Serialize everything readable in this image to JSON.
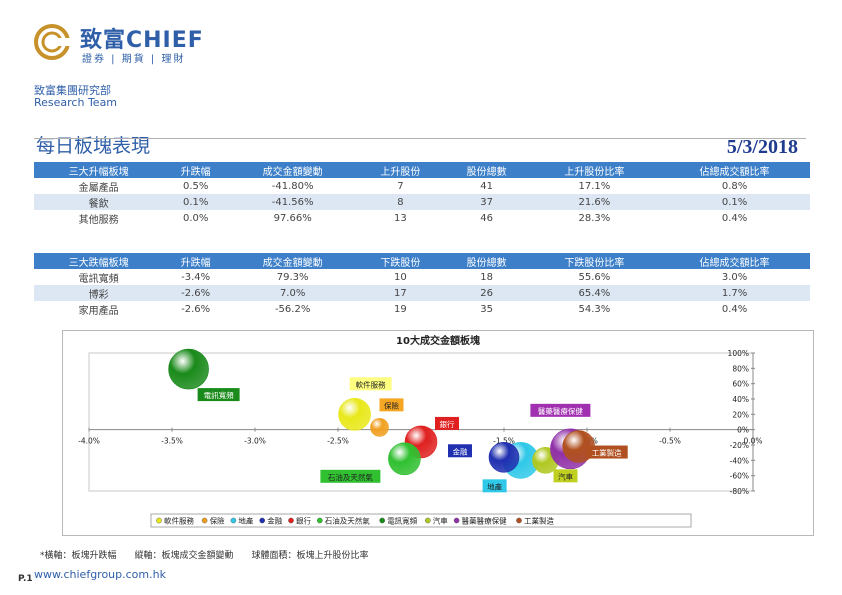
{
  "header": {
    "brand": "致富CHIEF",
    "brand_sub": "證券 | 期貨 | 理財",
    "dept": "致富集團研究部",
    "team": "Research Team"
  },
  "page_title": "每日板塊表現",
  "date": "5/3/2018",
  "gainers": {
    "columns": [
      "三大升幅板塊",
      "升跌幅",
      "成交金額變動",
      "上升股份",
      "股份總數",
      "上升股份比率",
      "佔總成交額比率"
    ],
    "rows": [
      [
        "金屬產品",
        "0.5%",
        "-41.80%",
        "7",
        "41",
        "17.1%",
        "0.8%"
      ],
      [
        "餐飲",
        "0.1%",
        "-41.56%",
        "8",
        "37",
        "21.6%",
        "0.1%"
      ],
      [
        "其他服務",
        "0.0%",
        "97.66%",
        "13",
        "46",
        "28.3%",
        "0.4%"
      ]
    ]
  },
  "losers": {
    "columns": [
      "三大跌幅板塊",
      "升跌幅",
      "成交金額變動",
      "下跌股份",
      "股份總數",
      "下跌股份比率",
      "佔總成交額比率"
    ],
    "rows": [
      [
        "電訊寬頻",
        "-3.4%",
        "79.3%",
        "10",
        "18",
        "55.6%",
        "3.0%"
      ],
      [
        "博彩",
        "-2.6%",
        "7.0%",
        "17",
        "26",
        "65.4%",
        "1.7%"
      ],
      [
        "家用產品",
        "-2.6%",
        "-56.2%",
        "19",
        "35",
        "54.3%",
        "0.4%"
      ]
    ]
  },
  "chart_data": {
    "type": "scatter",
    "title": "10大成交金額板塊",
    "xlim": [
      -4.0,
      0.0
    ],
    "ylim": [
      -80,
      100
    ],
    "x_ticks": [
      "-4.0%",
      "-3.5%",
      "-3.0%",
      "-2.5%",
      "-2.0%",
      "-1.5%",
      "-1.0%",
      "-0.5%",
      "0.0%"
    ],
    "y_ticks": [
      "100%",
      "80%",
      "60%",
      "40%",
      "20%",
      "0%",
      "-20%",
      "-40%",
      "-60%",
      "-80%"
    ],
    "series": [
      {
        "name": "軟件服務",
        "x": -2.4,
        "y": 20,
        "size": 16,
        "color": "#e8e81a"
      },
      {
        "name": "保險",
        "x": -2.25,
        "y": 3,
        "size": 9,
        "color": "#f0a020"
      },
      {
        "name": "地產",
        "x": -1.4,
        "y": -40,
        "size": 18,
        "color": "#2ec8e8"
      },
      {
        "name": "金融",
        "x": -1.5,
        "y": -36,
        "size": 15,
        "color": "#2030b0"
      },
      {
        "name": "銀行",
        "x": -2.0,
        "y": -16,
        "size": 16,
        "color": "#e02020"
      },
      {
        "name": "石油及天然氣",
        "x": -2.1,
        "y": -38,
        "size": 16,
        "color": "#30c030"
      },
      {
        "name": "電訊寬頻",
        "x": -3.4,
        "y": 79,
        "size": 20,
        "color": "#1a8a1a"
      },
      {
        "name": "汽車",
        "x": -1.25,
        "y": -40,
        "size": 13,
        "color": "#b0c820"
      },
      {
        "name": "醫藥醫療保健",
        "x": -1.1,
        "y": -25,
        "size": 20,
        "color": "#9030a8"
      },
      {
        "name": "工業製造",
        "x": -1.05,
        "y": -22,
        "size": 16,
        "color": "#b05020"
      }
    ],
    "labels": [
      {
        "name": "軟件服務",
        "bg": "#ffff80"
      },
      {
        "name": "保險",
        "bg": "#f5a623"
      },
      {
        "name": "銀行",
        "bg": "#e02020"
      },
      {
        "name": "醫藥醫療保健",
        "bg": "#a030b0"
      },
      {
        "name": "電訊寬頻",
        "bg": "#1a8a1a"
      },
      {
        "name": "石油及天然氣",
        "bg": "#30c030"
      },
      {
        "name": "金融",
        "bg": "#2030b0"
      },
      {
        "name": "地產",
        "bg": "#2ec8e8"
      },
      {
        "name": "汽車",
        "bg": "#c0d020"
      },
      {
        "name": "工業製造",
        "bg": "#b05020"
      }
    ]
  },
  "footnote": "*橫軸：板塊升跌幅　　縱軸：板塊成交金額變動　　球體面積：板塊上升股份比率",
  "page_num": "P.1",
  "url": "www.chiefgroup.com.hk"
}
